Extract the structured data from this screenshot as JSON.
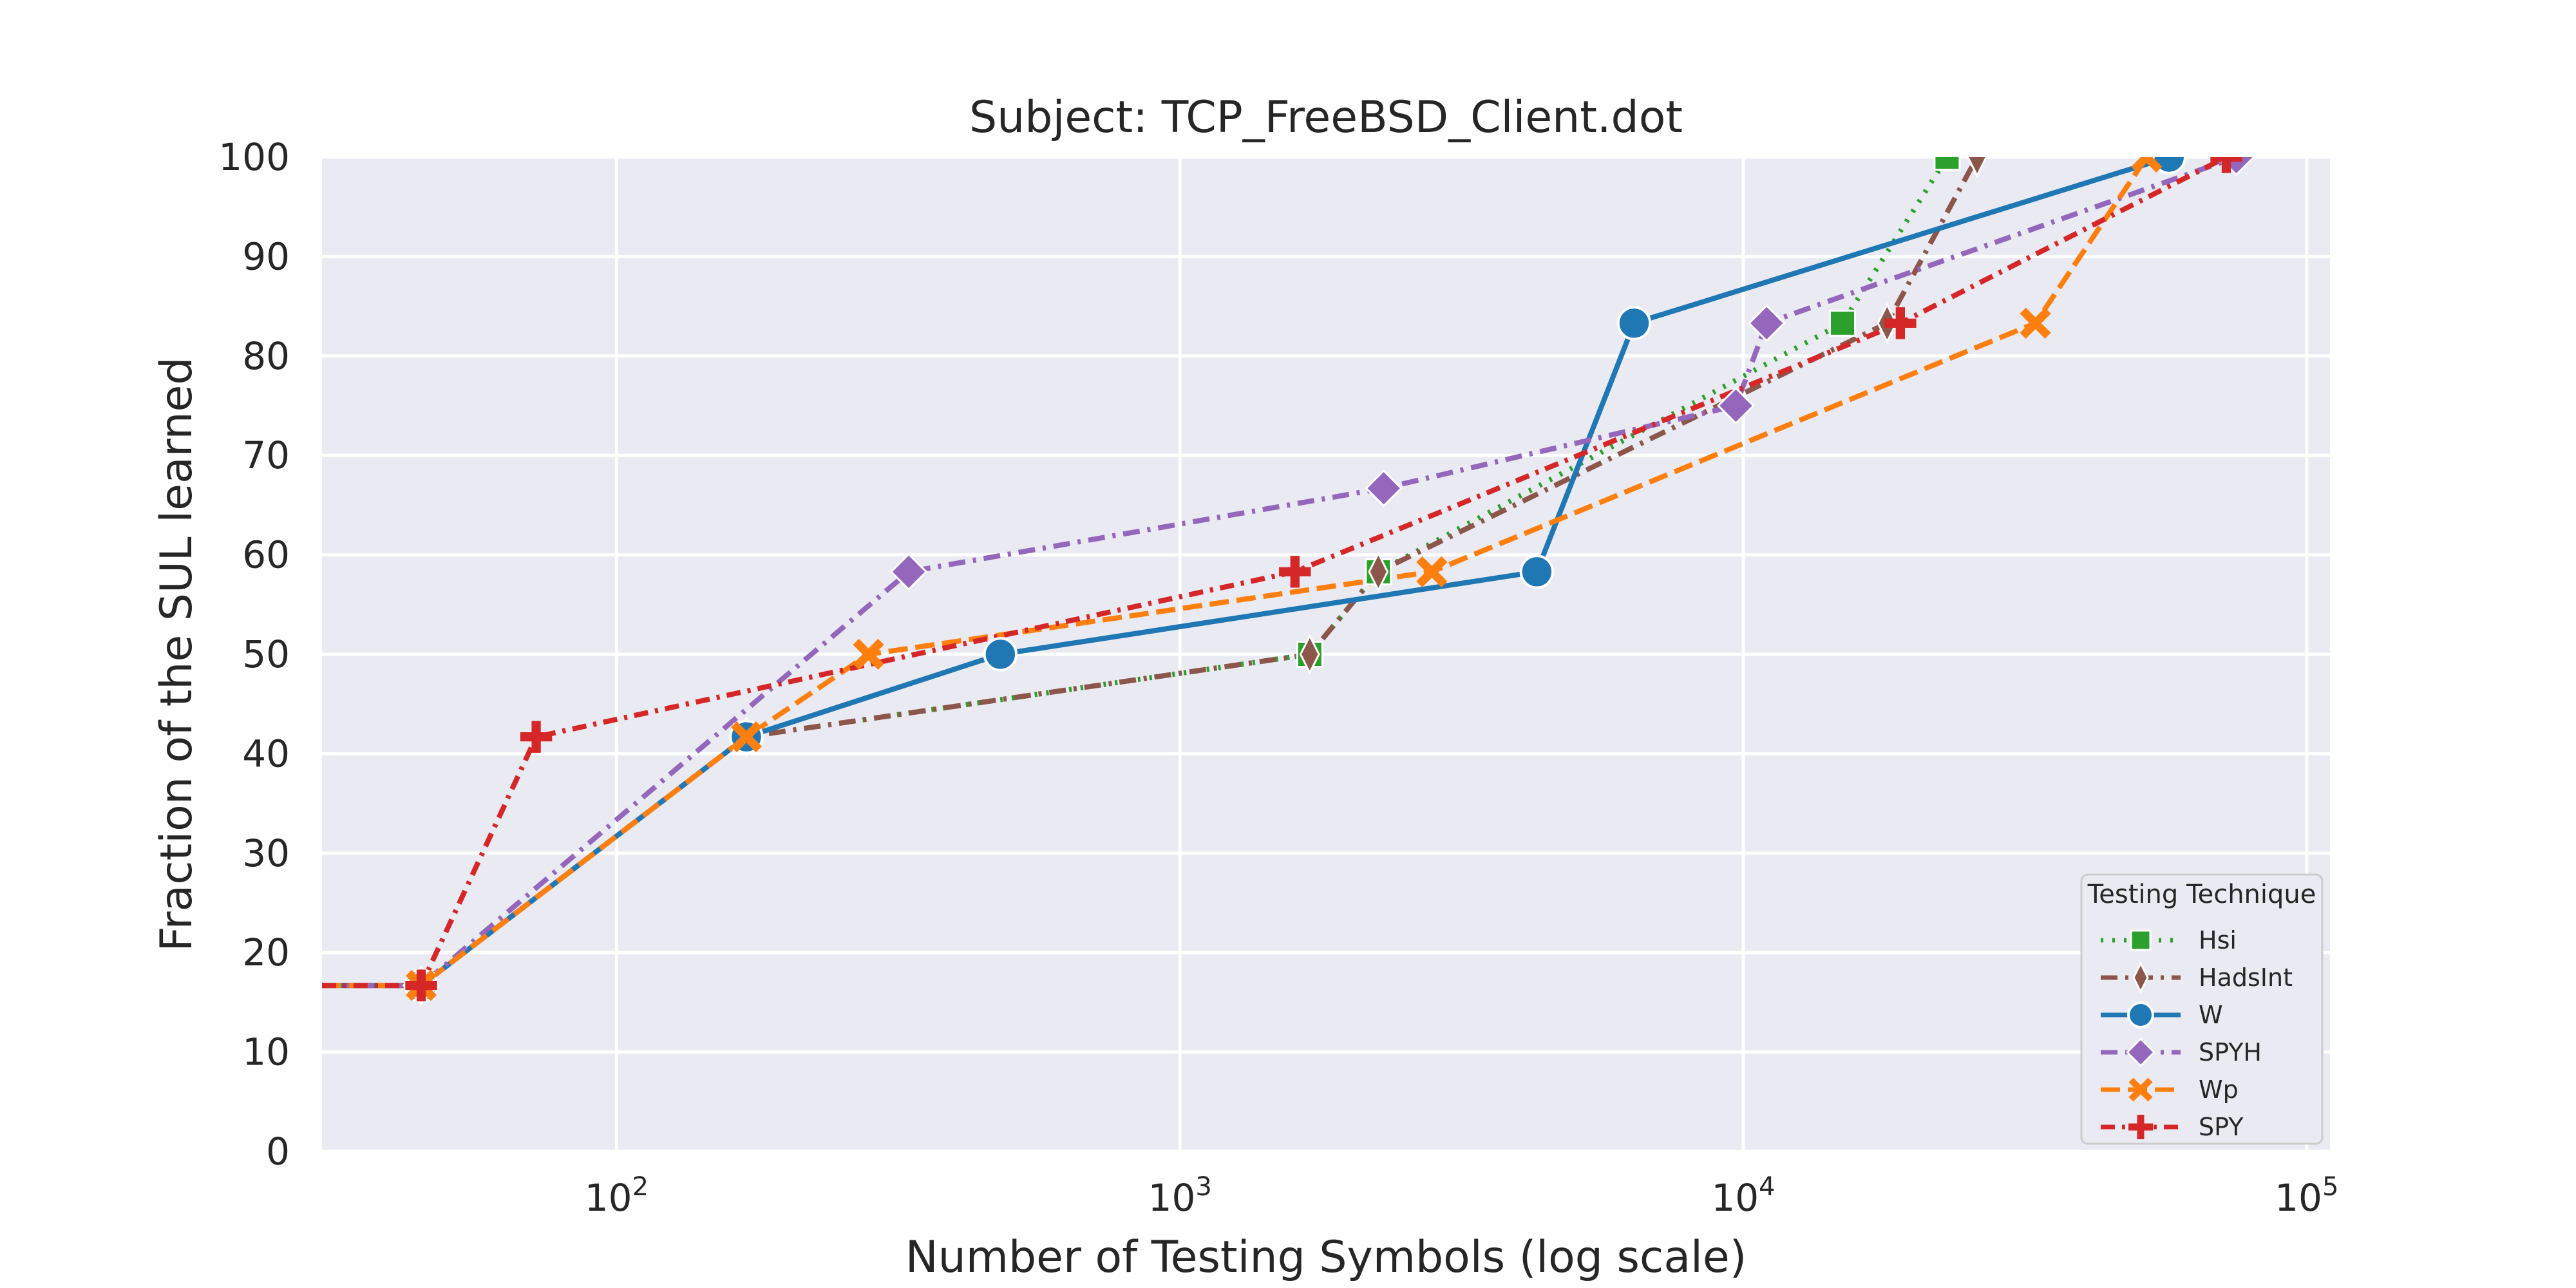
{
  "chart_data": {
    "type": "line",
    "title": "Subject: TCP_FreeBSD_Client.dot",
    "xlabel": "Number of Testing Symbols (log scale)",
    "ylabel": "Fraction of the SUL learned",
    "x_scale": "log",
    "xlim": [
      30,
      110000
    ],
    "ylim": [
      0,
      100
    ],
    "x_ticks": [
      {
        "value": 100,
        "base": "10",
        "exp": "2"
      },
      {
        "value": 1000,
        "base": "10",
        "exp": "3"
      },
      {
        "value": 10000,
        "base": "10",
        "exp": "4"
      },
      {
        "value": 100000,
        "base": "10",
        "exp": "5"
      }
    ],
    "y_ticks": [
      0,
      10,
      20,
      30,
      40,
      50,
      60,
      70,
      80,
      90,
      100
    ],
    "y_tick_labels": [
      "0",
      "10",
      "20",
      "30",
      "40",
      "50",
      "60",
      "70",
      "80",
      "90",
      "100"
    ],
    "grid": true,
    "background": "#eaeaf2",
    "legend": {
      "title": "Testing Technique",
      "position": "lower-right"
    },
    "series": [
      {
        "name": "Hsi",
        "color": "#2ca02c",
        "marker": "square",
        "dash": "dotted",
        "x": [
          30,
          45,
          170,
          1700,
          2250,
          15000,
          23000,
          28000
        ],
        "y": [
          16.7,
          16.7,
          41.7,
          50,
          58.3,
          83.3,
          100,
          106
        ]
      },
      {
        "name": "HadsInt",
        "color": "#8c564b",
        "marker": "thin-diamond",
        "dash": "dashdot",
        "x": [
          30,
          45,
          170,
          1700,
          2250,
          18000,
          26000,
          28000
        ],
        "y": [
          16.7,
          16.7,
          41.7,
          50,
          58.3,
          83.3,
          100,
          106
        ]
      },
      {
        "name": "W",
        "color": "#1f77b4",
        "marker": "circle",
        "dash": "solid",
        "x": [
          30,
          45,
          170,
          480,
          4300,
          6400,
          57000
        ],
        "y": [
          16.7,
          16.7,
          41.7,
          50,
          58.3,
          83.3,
          100
        ]
      },
      {
        "name": "SPYH",
        "color": "#9467bd",
        "marker": "diamond",
        "dash": "dashdot",
        "x": [
          30,
          45,
          330,
          2300,
          9700,
          11000,
          75000
        ],
        "y": [
          16.7,
          16.7,
          58.3,
          66.7,
          75,
          83.3,
          100
        ]
      },
      {
        "name": "Wp",
        "color": "#ff7f0e",
        "marker": "x",
        "dash": "dashed",
        "x": [
          30,
          45,
          170,
          280,
          2800,
          33000,
          52000
        ],
        "y": [
          16.7,
          16.7,
          41.7,
          50,
          58.3,
          83.3,
          100
        ]
      },
      {
        "name": "SPY",
        "color": "#d62728",
        "marker": "plus",
        "dash": "dashdot2",
        "x": [
          30,
          45,
          72,
          1600,
          19000,
          72000
        ],
        "y": [
          16.7,
          16.7,
          41.7,
          58.3,
          83.3,
          100
        ]
      }
    ]
  }
}
